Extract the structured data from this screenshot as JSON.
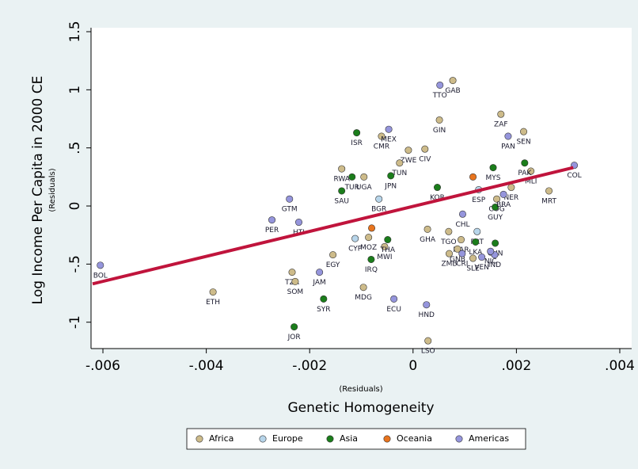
{
  "chart_data": {
    "type": "scatter",
    "y_title": "Log Income Per Capita in 2000 CE",
    "y_subtitle": "(Residuals)",
    "x_title": "Genetic Homogeneity",
    "x_subtitle": "(Residuals)",
    "xlim": [
      -0.00623,
      0.00423
    ],
    "ylim": [
      -1.227,
      1.534
    ],
    "xticks": [
      {
        "value": -0.006,
        "label": "-.006"
      },
      {
        "value": -0.004,
        "label": "-.004"
      },
      {
        "value": -0.002,
        "label": "-.002"
      },
      0,
      {
        "value": 0.002,
        "label": ".002"
      },
      {
        "value": 0.004,
        "label": ".004"
      }
    ],
    "yticks": [
      -1,
      {
        "value": -0.5,
        "label": "-.5"
      },
      0,
      {
        "value": 0.5,
        "label": ".5"
      },
      1,
      {
        "value": 1.5,
        "label": "1.5"
      }
    ],
    "grid": false,
    "legend": "bottom",
    "fit": {
      "color": "#c0143c",
      "x": [
        -0.0062,
        0.0031
      ],
      "y": [
        -0.67,
        0.33
      ]
    },
    "series": [
      {
        "name": "Africa",
        "color": "#cdbb8a",
        "labels": [
          "GAB",
          "GIN",
          "ZAF",
          "SEN",
          "CMR",
          "MLI",
          "MRT",
          "CIV",
          "ZWE",
          "TUN",
          "RWA",
          "UGA",
          "NER",
          "COG",
          "TGO",
          "MAR",
          "SLE",
          "GNB",
          "ZMB",
          "ETH",
          "TZA",
          "SOM",
          "EGY",
          "MDG",
          "MWI",
          "LSO",
          "MOZ",
          "GHA"
        ],
        "x": [
          0.00077,
          0.00051,
          0.0017,
          0.00214,
          -0.00061,
          0.00228,
          0.00263,
          0.00023,
          -9e-05,
          -0.00026,
          -0.00138,
          -0.00095,
          0.0019,
          0.00162,
          0.00069,
          0.00093,
          0.00116,
          0.00086,
          0.0007,
          -0.00387,
          -0.00234,
          -0.00228,
          -0.00155,
          -0.00096,
          -0.00055,
          0.00029,
          -0.00086,
          0.00028
        ],
        "y": [
          1.08,
          0.74,
          0.79,
          0.64,
          0.6,
          0.3,
          0.13,
          0.49,
          0.48,
          0.37,
          0.32,
          0.25,
          0.16,
          0.06,
          -0.22,
          -0.29,
          -0.45,
          -0.37,
          -0.41,
          -0.74,
          -0.57,
          -0.65,
          -0.42,
          -0.7,
          -0.35,
          -1.16,
          -0.27,
          -0.2
        ]
      },
      {
        "name": "Europe",
        "color": "#b7d5ea",
        "labels": [
          "ESP",
          "BGR",
          "PRT",
          "CYP"
        ],
        "x": [
          0.00127,
          -0.00066,
          0.00124,
          -0.00112
        ],
        "y": [
          0.14,
          0.06,
          -0.22,
          -0.28
        ]
      },
      {
        "name": "Asia",
        "color": "#1b7d1b",
        "labels": [
          "ISR",
          "PAK",
          "TUR",
          "SAU",
          "JPN",
          "MYS",
          "KOR",
          "GUY",
          "LKA",
          "CHN",
          "SYR",
          "IRQ",
          "JOR",
          "THA"
        ],
        "x": [
          -0.00109,
          0.00216,
          -0.00118,
          -0.00138,
          -0.00043,
          0.00155,
          0.00047,
          0.00159,
          0.00121,
          0.00159,
          -0.00173,
          -0.00081,
          -0.0023,
          -0.00049
        ],
        "y": [
          0.63,
          0.37,
          0.25,
          0.13,
          0.26,
          0.33,
          0.16,
          -0.01,
          -0.31,
          -0.32,
          -0.8,
          -0.46,
          -1.04,
          -0.29
        ]
      },
      {
        "name": "Oceania",
        "color": "#e8741e",
        "labels": [
          null,
          null
        ],
        "x": [
          0.00116,
          -0.0008
        ],
        "y": [
          0.25,
          -0.19
        ]
      },
      {
        "name": "Americas",
        "color": "#9595dc",
        "labels": [
          "TTO",
          "PAN",
          "MEX",
          "COL",
          "BRA",
          "GTM",
          "PER",
          "HTI",
          "CHL",
          "IND",
          "NIC",
          "VEN",
          "CRI",
          "BOL",
          "JAM",
          "ECU",
          "HND"
        ],
        "x": [
          0.00052,
          0.00184,
          -0.00047,
          0.00312,
          0.00175,
          -0.00239,
          -0.00273,
          -0.00221,
          0.00096,
          0.00158,
          0.0015,
          0.00133,
          0.00095,
          -0.00605,
          -0.00181,
          -0.00037,
          0.00026
        ],
        "y": [
          1.04,
          0.6,
          0.66,
          0.35,
          0.1,
          0.06,
          -0.12,
          -0.14,
          -0.07,
          -0.42,
          -0.39,
          -0.44,
          -0.41,
          -0.51,
          -0.57,
          -0.8,
          -0.85
        ]
      }
    ]
  }
}
